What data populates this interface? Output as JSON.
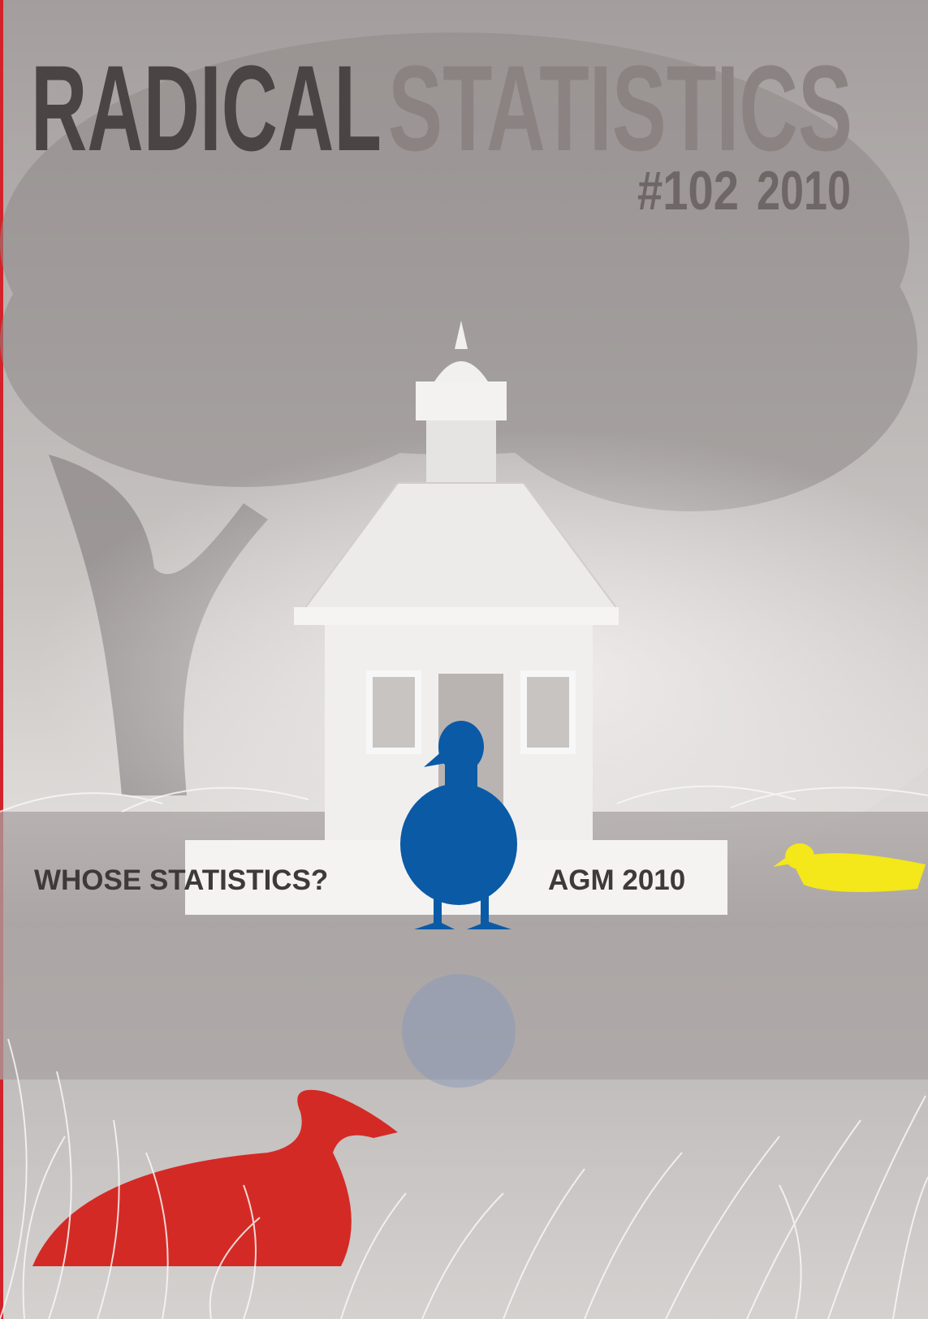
{
  "cover": {
    "title_part_1": "RADICAL",
    "title_part_2": "STATISTICS",
    "issue": "#102",
    "year": "2010",
    "headline_left": "WHOSE STATISTICS?",
    "headline_right": "AGM 2010"
  }
}
